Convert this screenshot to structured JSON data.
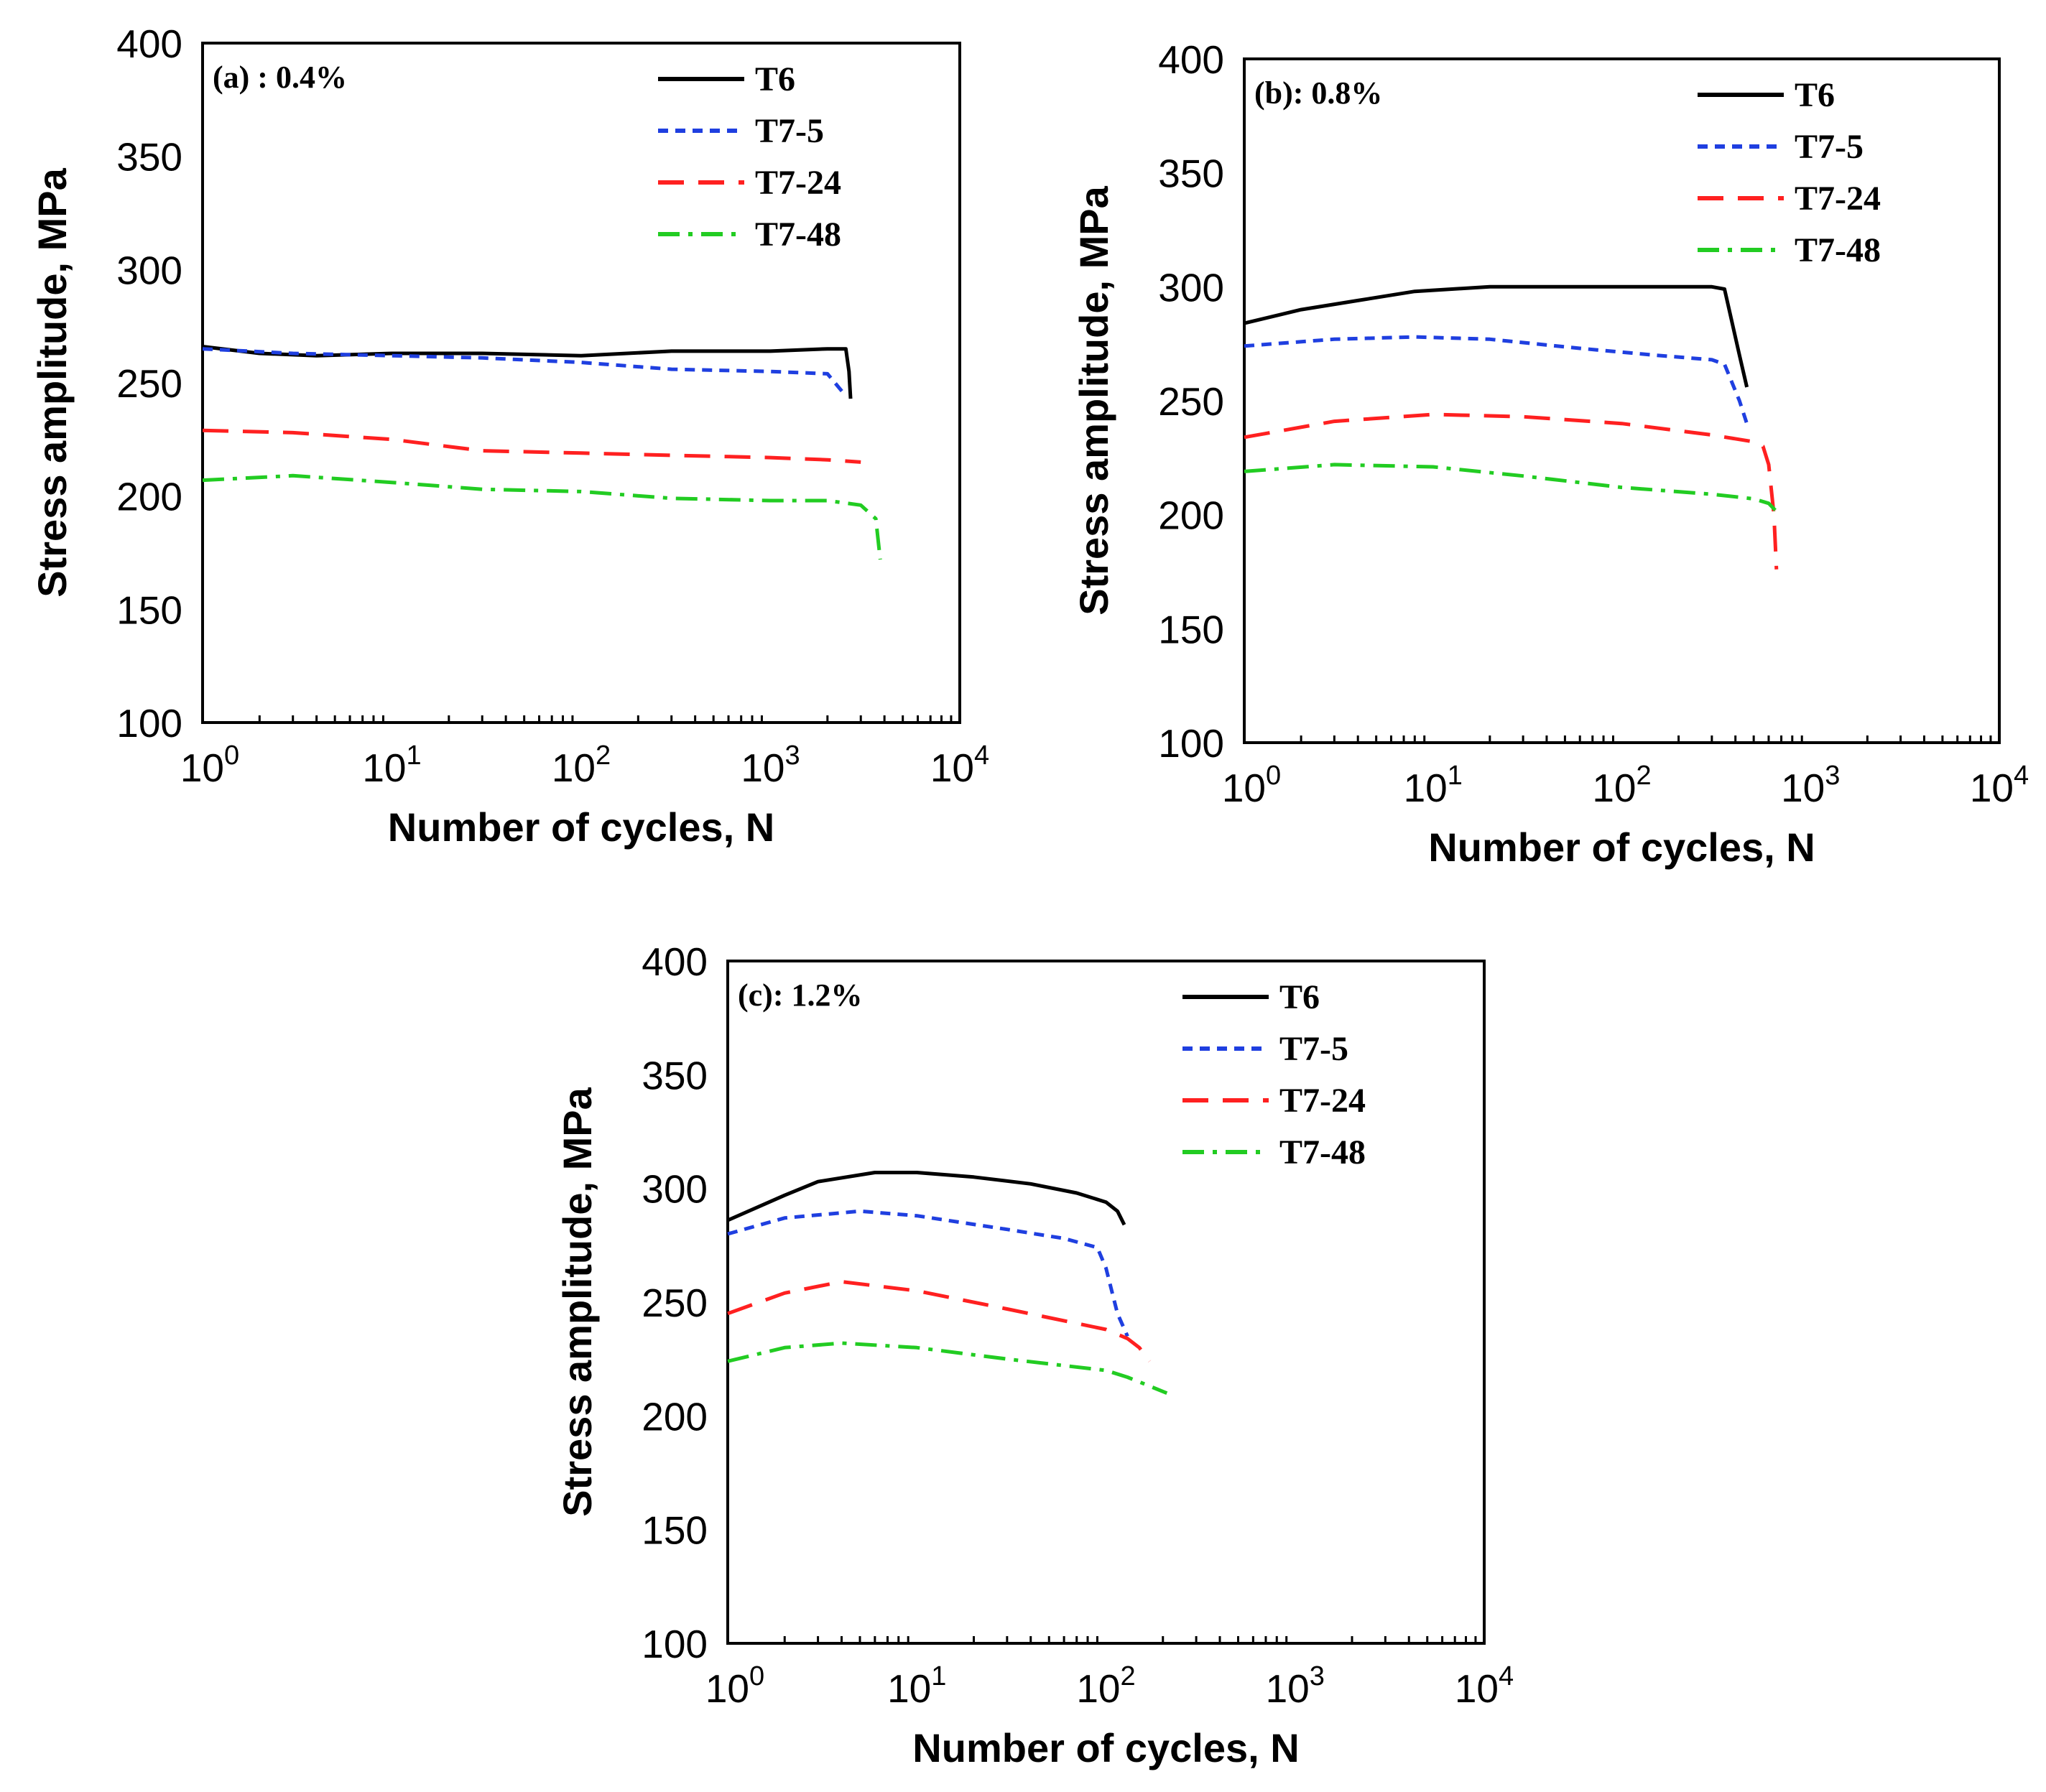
{
  "chart_data": [
    {
      "type": "line",
      "panel_label": "(a) : 0.4%",
      "xlabel": "Number of cycles, N",
      "ylabel": "Stress amplitude, MPa",
      "xscale": "log",
      "xlim": [
        1,
        10000
      ],
      "ylim": [
        100,
        400
      ],
      "y_ticks": [
        "100",
        "150",
        "200",
        "250",
        "300",
        "350",
        "400"
      ],
      "x_ticks": [
        {
          "base": "10",
          "exp": "0"
        },
        {
          "base": "10",
          "exp": "1"
        },
        {
          "base": "10",
          "exp": "2"
        },
        {
          "base": "10",
          "exp": "3"
        },
        {
          "base": "10",
          "exp": "4"
        }
      ],
      "legend_position": "top-right",
      "series": [
        {
          "name": "T6",
          "color": "#000000",
          "style": "solid",
          "x": [
            1,
            2,
            4,
            10,
            30,
            100,
            300,
            1000,
            2000,
            2500,
            2600,
            2650
          ],
          "y": [
            266,
            263,
            262,
            263,
            263,
            262,
            264,
            264,
            265,
            265,
            255,
            243
          ]
        },
        {
          "name": "T7-5",
          "color": "#1f3fe0",
          "style": "dotted",
          "x": [
            1,
            3,
            10,
            30,
            100,
            300,
            1000,
            2000,
            2400
          ],
          "y": [
            265,
            263,
            262,
            261,
            259,
            256,
            255,
            254,
            246
          ]
        },
        {
          "name": "T7-24",
          "color": "#ff2020",
          "style": "dashed",
          "x": [
            1,
            3,
            10,
            30,
            100,
            300,
            1000,
            2000,
            3000
          ],
          "y": [
            229,
            228,
            225,
            220,
            219,
            218,
            217,
            216,
            215
          ]
        },
        {
          "name": "T7-48",
          "color": "#22cc22",
          "style": "dashdot",
          "x": [
            1,
            3,
            10,
            30,
            100,
            300,
            1000,
            2000,
            3000,
            3600,
            3800
          ],
          "y": [
            207,
            209,
            206,
            203,
            202,
            199,
            198,
            198,
            196,
            190,
            172
          ]
        }
      ]
    },
    {
      "type": "line",
      "panel_label": "(b): 0.8%",
      "xlabel": "Number of cycles, N",
      "ylabel": "Stress amplitude, MPa",
      "xscale": "log",
      "xlim": [
        1,
        10000
      ],
      "ylim": [
        100,
        400
      ],
      "y_ticks": [
        "100",
        "150",
        "200",
        "250",
        "300",
        "350",
        "400"
      ],
      "x_ticks": [
        {
          "base": "10",
          "exp": "0"
        },
        {
          "base": "10",
          "exp": "1"
        },
        {
          "base": "10",
          "exp": "2"
        },
        {
          "base": "10",
          "exp": "3"
        },
        {
          "base": "10",
          "exp": "4"
        }
      ],
      "legend_position": "top-right",
      "series": [
        {
          "name": "T6",
          "color": "#000000",
          "style": "solid",
          "x": [
            1,
            2,
            4,
            8,
            20,
            60,
            150,
            300,
            350,
            420,
            460
          ],
          "y": [
            284,
            290,
            294,
            298,
            300,
            300,
            300,
            300,
            299,
            270,
            256
          ]
        },
        {
          "name": "T7-5",
          "color": "#1f3fe0",
          "style": "dotted",
          "x": [
            1,
            3,
            8,
            20,
            60,
            150,
            300,
            350,
            420,
            460
          ],
          "y": [
            274,
            277,
            278,
            277,
            273,
            270,
            268,
            266,
            250,
            240
          ]
        },
        {
          "name": "T7-24",
          "color": "#ff2020",
          "style": "dashed",
          "x": [
            1,
            3,
            10,
            30,
            100,
            300,
            500,
            560,
            600,
            640,
            660
          ],
          "y": [
            234,
            241,
            244,
            243,
            240,
            235,
            232,
            230,
            222,
            200,
            176
          ]
        },
        {
          "name": "T7-48",
          "color": "#22cc22",
          "style": "dashdot",
          "x": [
            1,
            3,
            10,
            30,
            100,
            300,
            500,
            600,
            650
          ],
          "y": [
            219,
            222,
            221,
            217,
            212,
            209,
            207,
            205,
            202
          ]
        }
      ]
    },
    {
      "type": "line",
      "panel_label": "(c): 1.2%",
      "xlabel": "Number of cycles, N",
      "ylabel": "Stress amplitude, MPa",
      "xscale": "log",
      "xlim": [
        1,
        10000
      ],
      "ylim": [
        100,
        400
      ],
      "y_ticks": [
        "100",
        "150",
        "200",
        "250",
        "300",
        "350",
        "400"
      ],
      "x_ticks": [
        {
          "base": "10",
          "exp": "0"
        },
        {
          "base": "10",
          "exp": "1"
        },
        {
          "base": "10",
          "exp": "2"
        },
        {
          "base": "10",
          "exp": "3"
        },
        {
          "base": "10",
          "exp": "4"
        }
      ],
      "legend_position": "top-right",
      "series": [
        {
          "name": "T6",
          "color": "#000000",
          "style": "solid",
          "x": [
            1,
            2,
            3,
            6,
            10,
            20,
            40,
            70,
            100,
            115,
            125
          ],
          "y": [
            286,
            297,
            303,
            307,
            307,
            305,
            302,
            298,
            294,
            290,
            284
          ]
        },
        {
          "name": "T7-5",
          "color": "#1f3fe0",
          "style": "dotted",
          "x": [
            1,
            2,
            5,
            10,
            30,
            60,
            90,
            100,
            115,
            130
          ],
          "y": [
            280,
            287,
            290,
            288,
            282,
            278,
            274,
            265,
            245,
            235
          ]
        },
        {
          "name": "T7-24",
          "color": "#ff2020",
          "style": "dashed",
          "x": [
            1,
            2,
            4,
            10,
            30,
            100,
            130,
            150,
            170
          ],
          "y": [
            245,
            254,
            259,
            255,
            247,
            238,
            234,
            230,
            224
          ]
        },
        {
          "name": "T7-48",
          "color": "#22cc22",
          "style": "dashdot",
          "x": [
            1,
            2,
            4,
            10,
            30,
            100,
            130,
            160,
            210
          ],
          "y": [
            224,
            230,
            232,
            230,
            225,
            220,
            217,
            214,
            210
          ]
        }
      ]
    }
  ]
}
